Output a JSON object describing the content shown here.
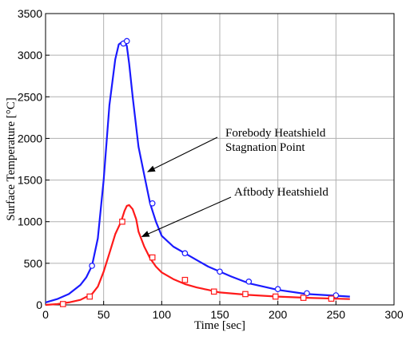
{
  "chart_data": {
    "type": "line",
    "title": "",
    "xlabel": "Time [sec]",
    "ylabel": "Surface Temperature [°C]",
    "xlim": [
      0,
      300
    ],
    "ylim": [
      0,
      3500
    ],
    "xticks": [
      0,
      50,
      100,
      150,
      200,
      250,
      300
    ],
    "yticks": [
      0,
      500,
      1000,
      1500,
      2000,
      2500,
      3000,
      3500
    ],
    "grid": true,
    "series": [
      {
        "name": "Forebody Heatshield Stagnation Point",
        "color": "#1a1aff",
        "marker": "circle",
        "x": [
          0,
          10,
          20,
          30,
          35,
          40,
          45,
          50,
          55,
          60,
          63,
          66,
          68,
          70,
          72,
          75,
          80,
          85,
          90,
          95,
          100,
          110,
          120,
          130,
          140,
          150,
          160,
          175,
          200,
          225,
          250,
          262
        ],
        "y": [
          30,
          70,
          130,
          240,
          330,
          470,
          800,
          1500,
          2400,
          2950,
          3130,
          3160,
          3170,
          3110,
          2900,
          2500,
          1900,
          1560,
          1220,
          1000,
          830,
          700,
          620,
          540,
          460,
          400,
          340,
          260,
          180,
          130,
          110,
          100
        ],
        "markers_x": [
          40,
          67,
          70,
          92,
          120,
          150,
          175,
          200,
          225,
          250
        ],
        "markers_y": [
          470,
          3140,
          3170,
          1220,
          620,
          400,
          280,
          190,
          140,
          115
        ]
      },
      {
        "name": "Aftbody Heatshield",
        "color": "#ff1a1a",
        "marker": "square",
        "x": [
          0,
          10,
          20,
          30,
          40,
          45,
          50,
          55,
          60,
          65,
          68,
          70,
          72,
          75,
          78,
          80,
          85,
          90,
          95,
          100,
          110,
          120,
          130,
          140,
          150,
          175,
          200,
          225,
          250,
          262
        ],
        "y": [
          0,
          10,
          30,
          60,
          130,
          220,
          400,
          620,
          850,
          1000,
          1130,
          1190,
          1200,
          1150,
          1030,
          880,
          700,
          560,
          460,
          390,
          310,
          250,
          210,
          180,
          150,
          120,
          100,
          85,
          75,
          70
        ],
        "markers_x": [
          15,
          38,
          66,
          92,
          120,
          145,
          172,
          198,
          222,
          246
        ],
        "markers_y": [
          10,
          100,
          1000,
          570,
          300,
          160,
          130,
          100,
          85,
          75
        ]
      }
    ],
    "annotations": [
      {
        "lines": [
          "Forebody Heatshield",
          "Stagnation Point"
        ],
        "target_series": 0,
        "target_x": 88,
        "target_y": 1600
      },
      {
        "lines": [
          "Aftbody Heatshield"
        ],
        "target_series": 1,
        "target_x": 83,
        "target_y": 820
      }
    ]
  }
}
